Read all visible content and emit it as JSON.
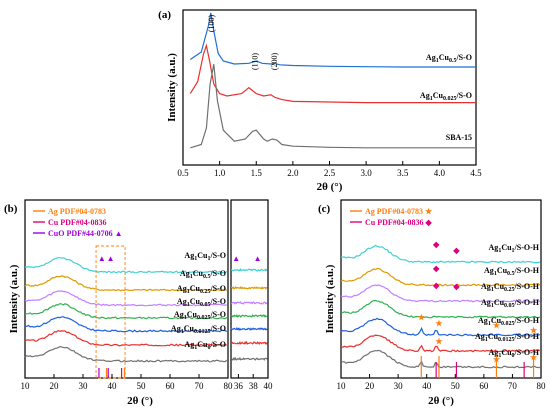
{
  "chart_data": [
    {
      "panel": "(a)",
      "type": "line",
      "xlabel": "2θ (°)",
      "ylabel": "Intensity (a.u.)",
      "xlim": [
        0.5,
        4.5
      ],
      "xticks": [
        "0.5",
        "1.0",
        "1.5",
        "2.0",
        "2.5",
        "3.0",
        "3.5",
        "4.0",
        "4.5"
      ],
      "peak_labels": [
        "(100)",
        "(110)",
        "(200)"
      ],
      "series": [
        {
          "name": "Ag1Cu0.5/S-O",
          "color": "#1f6fd6",
          "x": [
            0.6,
            0.75,
            0.85,
            0.88,
            0.92,
            0.98,
            1.05,
            1.2,
            1.4,
            1.5,
            1.58,
            1.7,
            1.75,
            1.82,
            2.0,
            2.5,
            3.0,
            3.5,
            4.0,
            4.5
          ],
          "y": [
            0.07,
            0.12,
            0.3,
            0.38,
            0.26,
            0.11,
            0.06,
            0.04,
            0.045,
            0.06,
            0.045,
            0.04,
            0.045,
            0.035,
            0.03,
            0.025,
            0.022,
            0.02,
            0.02,
            0.02
          ]
        },
        {
          "name": "Ag1Cu0.025/S-O",
          "color": "#e83030",
          "x": [
            0.6,
            0.7,
            0.78,
            0.82,
            0.86,
            0.92,
            1.0,
            1.1,
            1.3,
            1.4,
            1.5,
            1.6,
            1.7,
            1.75,
            1.85,
            2.0,
            2.5,
            3.0,
            3.5,
            4.0,
            4.5
          ],
          "y": [
            0.12,
            0.22,
            0.45,
            0.52,
            0.4,
            0.2,
            0.12,
            0.1,
            0.12,
            0.17,
            0.12,
            0.1,
            0.11,
            0.09,
            0.07,
            0.055,
            0.05,
            0.045,
            0.045,
            0.045,
            0.045
          ]
        },
        {
          "name": "SBA-15",
          "color": "#707070",
          "x": [
            0.6,
            0.75,
            0.82,
            0.87,
            0.92,
            0.97,
            1.05,
            1.2,
            1.35,
            1.45,
            1.5,
            1.6,
            1.65,
            1.72,
            1.78,
            1.85,
            2.0,
            2.5,
            3.0,
            3.5,
            4.0,
            4.5
          ],
          "y": [
            0.02,
            0.05,
            0.2,
            0.6,
            0.78,
            0.45,
            0.18,
            0.08,
            0.1,
            0.17,
            0.18,
            0.1,
            0.08,
            0.1,
            0.09,
            0.05,
            0.035,
            0.025,
            0.02,
            0.02,
            0.02,
            0.02
          ]
        }
      ]
    },
    {
      "panel": "(b)",
      "type": "line",
      "xlabel": "2θ (°)",
      "ylabel": "Intensity (a.u.)",
      "xlim": [
        10,
        80
      ],
      "xticks": [
        "10",
        "20",
        "30",
        "40",
        "50",
        "60",
        "70",
        "80"
      ],
      "xlim_inset": [
        35,
        40
      ],
      "xticks_inset": [
        "36",
        "38",
        "40"
      ],
      "legend": [
        {
          "label": "Ag PDF#04-0783",
          "color": "#ff7f0e"
        },
        {
          "label": "Cu PDF#04-0836",
          "color": "#e0007f"
        },
        {
          "label": "CuO PDF#44-0706 ▲",
          "color": "#a000e0"
        }
      ],
      "markers": {
        "CuO": "▲"
      },
      "series": [
        {
          "name": "Ag1Cu1/S-O",
          "color": "#40d0d8"
        },
        {
          "name": "Ag1Cu0.5/S-O",
          "color": "#e09a00"
        },
        {
          "name": "Ag1Cu0.25/S-O",
          "color": "#c080ff"
        },
        {
          "name": "Ag1Cu0.05/S-O",
          "color": "#30b050"
        },
        {
          "name": "Ag1Cu0.025/S-O",
          "color": "#1f5fe0"
        },
        {
          "name": "Ag1Cu0.0125/S-O",
          "color": "#e83030"
        },
        {
          "name": "Ag1Cu0/S-O",
          "color": "#707070"
        }
      ],
      "ref_lines": {
        "Ag": [
          38.1,
          44.3
        ],
        "Cu": [
          43.3
        ],
        "CuO": [
          35.5,
          38.7
        ]
      }
    },
    {
      "panel": "(c)",
      "type": "line",
      "xlabel": "2θ (°)",
      "ylabel": "Intensity (a.u.)",
      "xlim": [
        10,
        80
      ],
      "xticks": [
        "10",
        "20",
        "30",
        "40",
        "50",
        "60",
        "70",
        "80"
      ],
      "legend": [
        {
          "label": "Ag PDF#04-0783 ★",
          "color": "#ff7f0e"
        },
        {
          "label": "Cu PDF#04-0836 ◆",
          "color": "#e0007f"
        }
      ],
      "markers": {
        "Ag": "★",
        "Cu": "◆"
      },
      "series": [
        {
          "name": "Ag1Cu1/S-O-H",
          "color": "#40d0d8"
        },
        {
          "name": "Ag1Cu0.5/S-O-H",
          "color": "#e09a00"
        },
        {
          "name": "Ag1Cu0.25/S-O-H",
          "color": "#c080ff"
        },
        {
          "name": "Ag1Cu0.05/S-O-H",
          "color": "#30b050"
        },
        {
          "name": "Ag1Cu0.025/S-O-H",
          "color": "#1f5fe0"
        },
        {
          "name": "Ag1Cu0.0125/S-O-H",
          "color": "#e83030"
        },
        {
          "name": "Ag1Cu0/S-O-H",
          "color": "#707070"
        }
      ],
      "ref_lines": {
        "Ag": [
          38.1,
          44.3,
          64.4,
          77.4
        ],
        "Cu": [
          43.3,
          50.4,
          74.1
        ]
      }
    }
  ],
  "panel_labels": {
    "a": "(a)",
    "b": "(b)",
    "c": "(c)"
  }
}
